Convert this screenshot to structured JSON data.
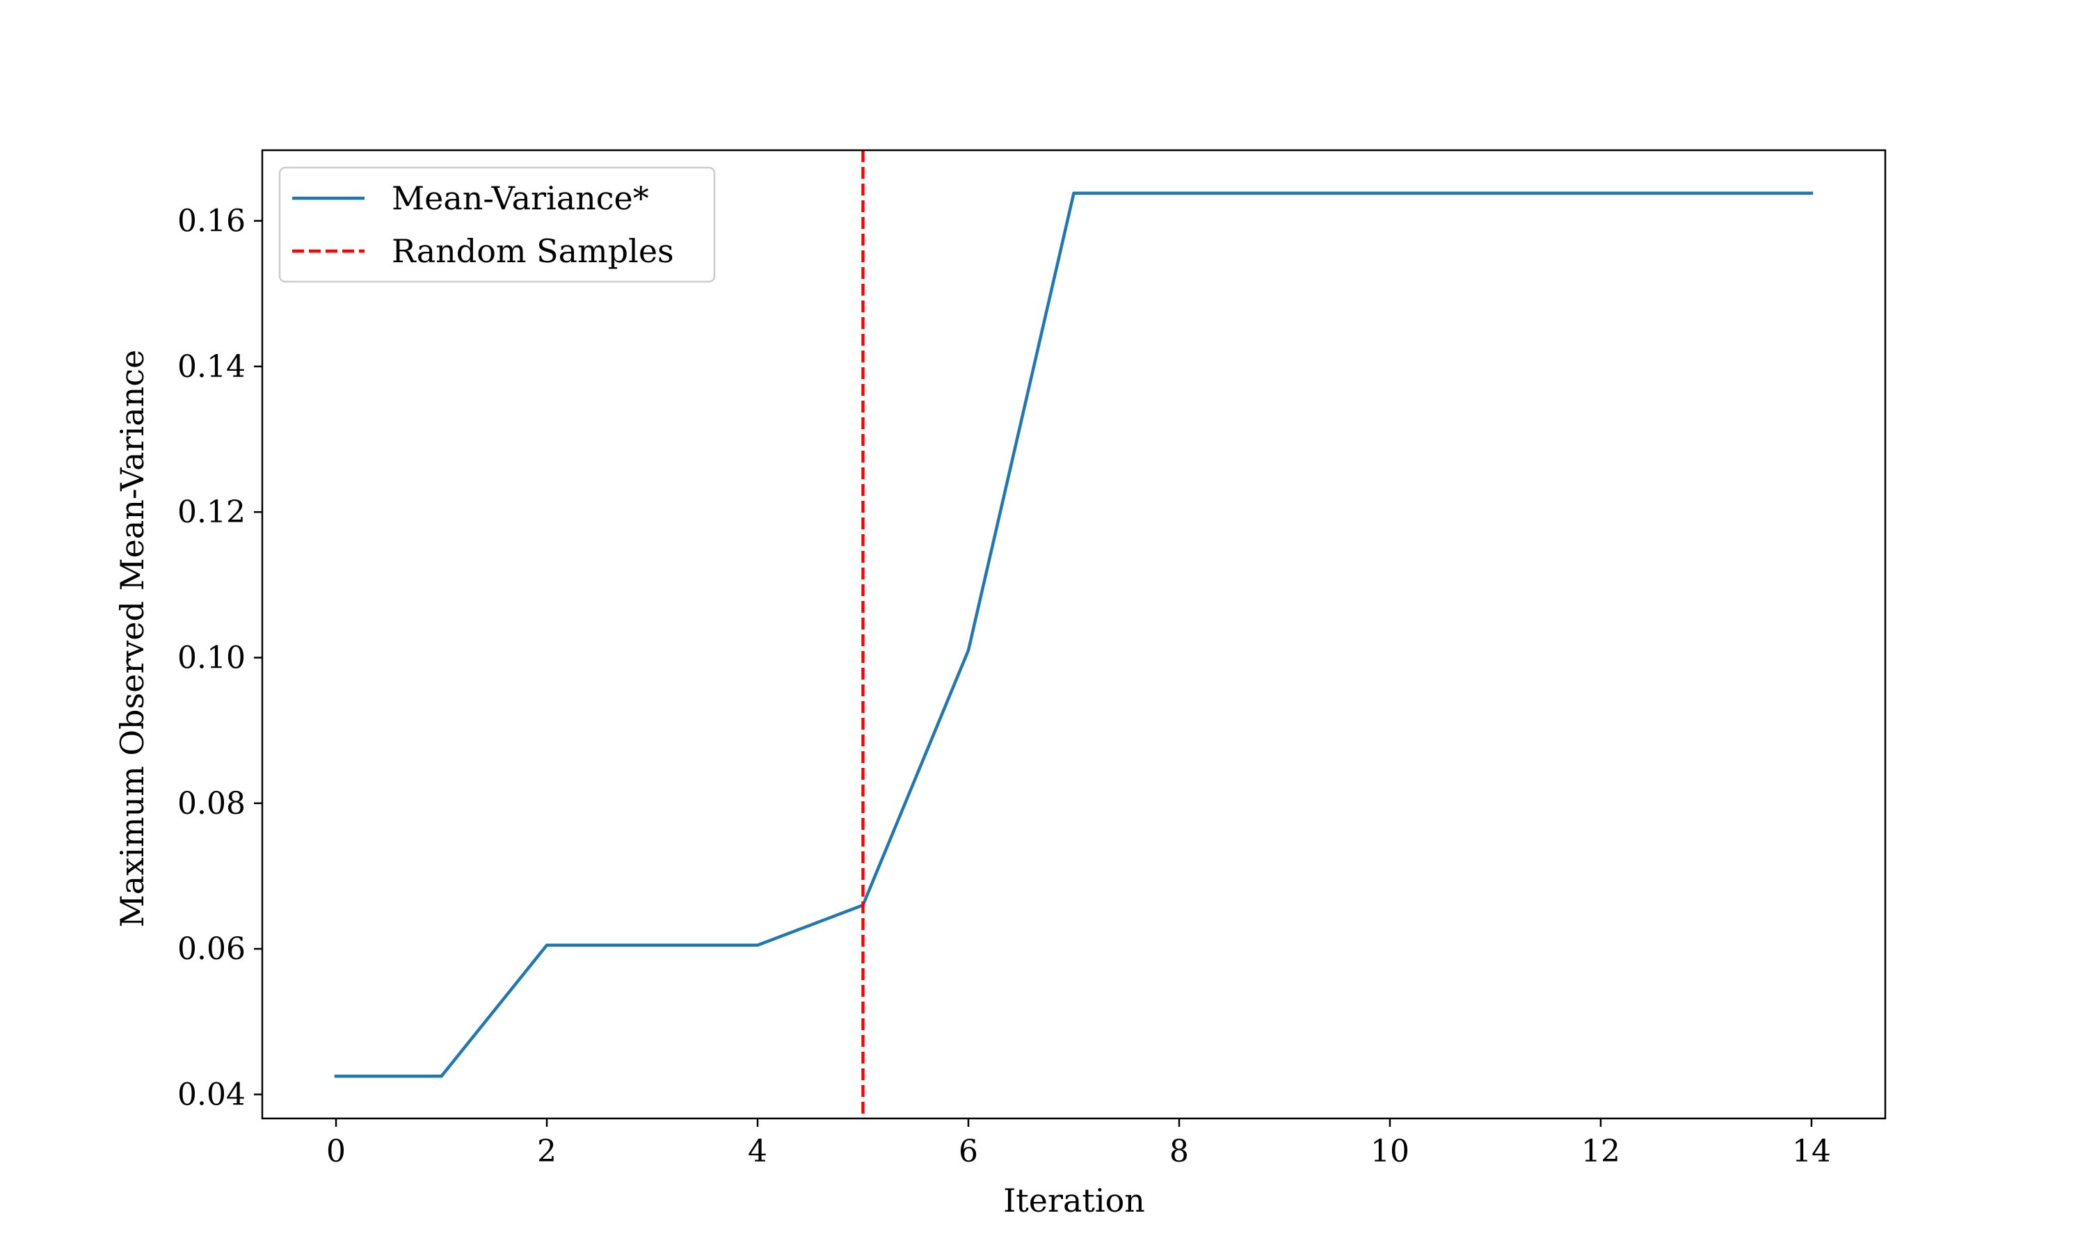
{
  "chart_data": {
    "type": "line",
    "title": "",
    "xlabel": "Iteration",
    "ylabel": "Maximum Observed Mean-Variance",
    "xlim": [
      -0.7,
      14.7
    ],
    "ylim": [
      0.0367,
      0.1697
    ],
    "xticks": [
      0,
      2,
      4,
      6,
      8,
      10,
      12,
      14
    ],
    "xtick_labels": [
      "0",
      "2",
      "4",
      "6",
      "8",
      "10",
      "12",
      "14"
    ],
    "yticks": [
      0.04,
      0.06,
      0.08,
      0.1,
      0.12,
      0.14,
      0.16
    ],
    "ytick_labels": [
      "0.04",
      "0.06",
      "0.08",
      "0.10",
      "0.12",
      "0.14",
      "0.16"
    ],
    "grid": false,
    "legend_position": "top-left",
    "series": [
      {
        "name": "Mean-Variance*",
        "color": "#1f77b4",
        "style": "solid",
        "x": [
          0,
          1,
          2,
          3,
          4,
          5,
          6,
          7,
          8,
          9,
          10,
          11,
          12,
          13,
          14
        ],
        "y": [
          0.0425,
          0.0425,
          0.0605,
          0.0605,
          0.0605,
          0.066,
          0.101,
          0.1638,
          0.1638,
          0.1638,
          0.1638,
          0.1638,
          0.1638,
          0.1638,
          0.1638
        ]
      }
    ],
    "vlines": [
      {
        "name": "Random Samples",
        "x": 5,
        "color": "#ff0000",
        "style": "dashed"
      }
    ]
  }
}
